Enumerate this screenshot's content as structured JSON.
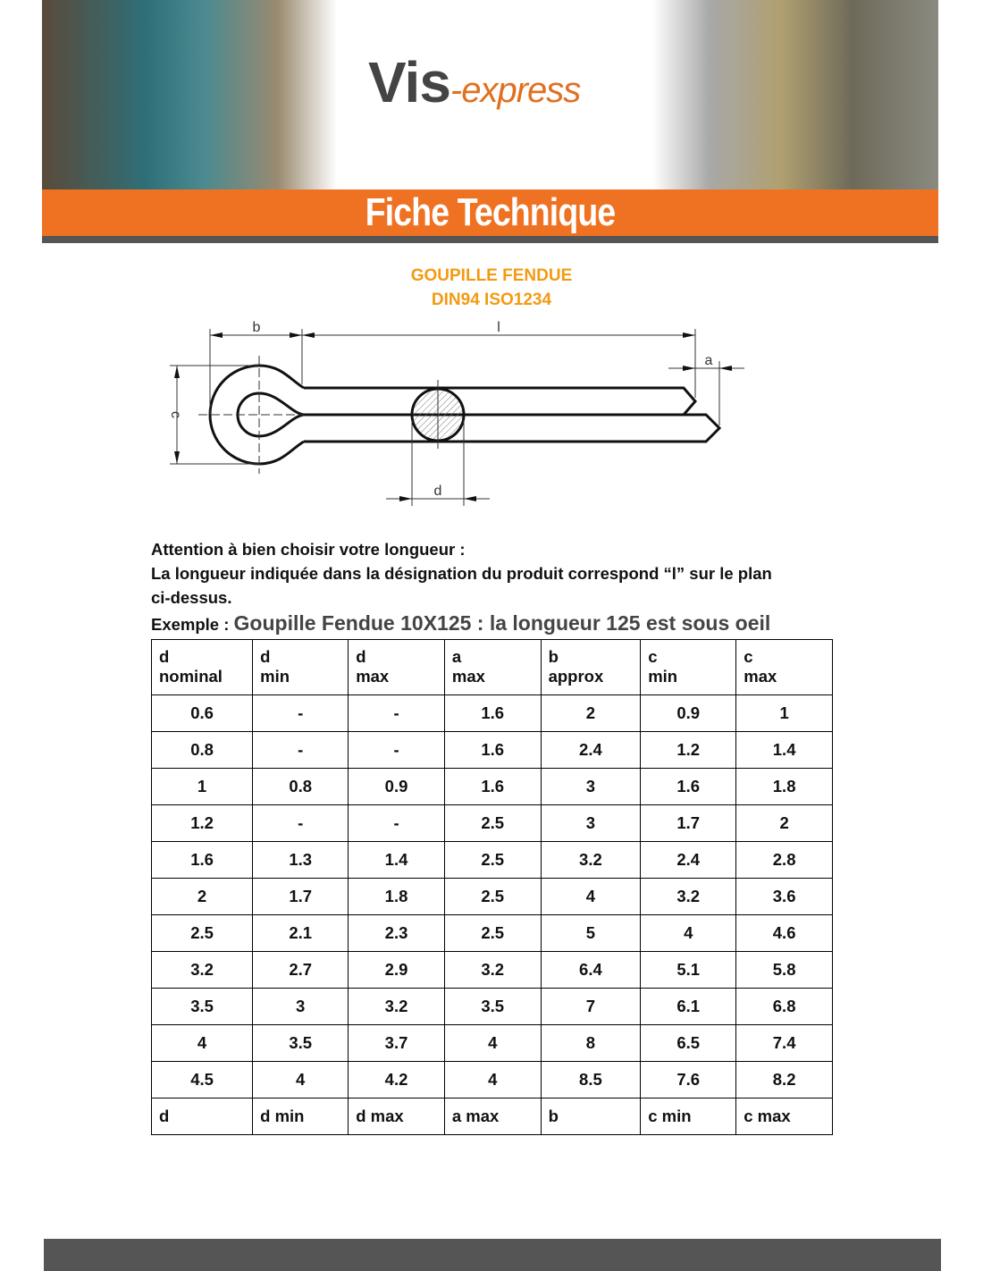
{
  "header": {
    "logo_main": "Vis",
    "logo_accent": "-express",
    "banner_title": "Fiche Technique"
  },
  "product": {
    "title": "GOUPILLE FENDUE",
    "standard": "DIN94 ISO1234"
  },
  "diagram": {
    "labels": {
      "b": "b",
      "l": "l",
      "a": "a",
      "c": "c",
      "d": "d"
    }
  },
  "notice": {
    "line1": "Attention à bien choisir votre longueur :",
    "line2": "La longueur indiquée dans la désignation du produit correspond “l” sur le plan",
    "line3": "ci-dessus.",
    "example_label": "Exemple :",
    "example_text": "Goupille Fendue 10X125 : la longueur 125 est sous oeil"
  },
  "table": {
    "headers": [
      "d nominal",
      "d min",
      "d max",
      "a max",
      "b approx",
      "c min",
      "c max"
    ],
    "rows": [
      [
        "0.6",
        "-",
        "-",
        "1.6",
        "2",
        "0.9",
        "1"
      ],
      [
        "0.8",
        "-",
        "-",
        "1.6",
        "2.4",
        "1.2",
        "1.4"
      ],
      [
        "1",
        "0.8",
        "0.9",
        "1.6",
        "3",
        "1.6",
        "1.8"
      ],
      [
        "1.2",
        "-",
        "-",
        "2.5",
        "3",
        "1.7",
        "2"
      ],
      [
        "1.6",
        "1.3",
        "1.4",
        "2.5",
        "3.2",
        "2.4",
        "2.8"
      ],
      [
        "2",
        "1.7",
        "1.8",
        "2.5",
        "4",
        "3.2",
        "3.6"
      ],
      [
        "2.5",
        "2.1",
        "2.3",
        "2.5",
        "5",
        "4",
        "4.6"
      ],
      [
        "3.2",
        "2.7",
        "2.9",
        "3.2",
        "6.4",
        "5.1",
        "5.8"
      ],
      [
        "3.5",
        "3",
        "3.2",
        "3.5",
        "7",
        "6.1",
        "6.8"
      ],
      [
        "4",
        "3.5",
        "3.7",
        "4",
        "8",
        "6.5",
        "7.4"
      ],
      [
        "4.5",
        "4",
        "4.2",
        "4",
        "8.5",
        "7.6",
        "8.2"
      ]
    ],
    "footer": [
      "d",
      "d min",
      "d max",
      "a max",
      "b",
      "c min",
      "c max"
    ]
  },
  "colors": {
    "accent": "#ef7222",
    "title": "#f39a12",
    "bar": "#555555"
  }
}
